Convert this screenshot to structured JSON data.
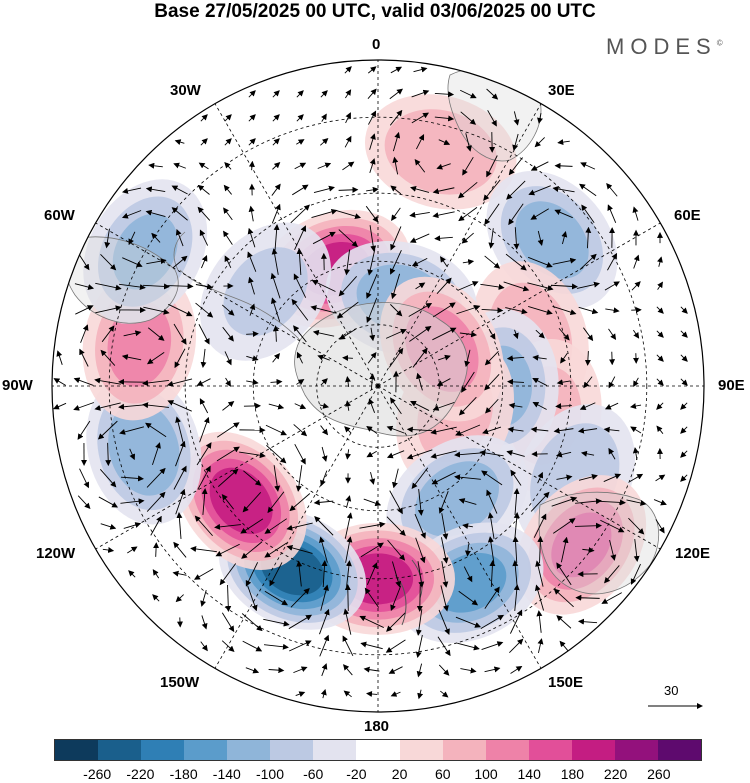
{
  "title": "Base 27/05/2025 00 UTC, valid 03/06/2025 00 UTC",
  "brand": "MODES",
  "brand_mark": "©",
  "longitude_labels": [
    {
      "text": "0",
      "lon": 0
    },
    {
      "text": "30E",
      "lon": 30
    },
    {
      "text": "60E",
      "lon": 60
    },
    {
      "text": "90E",
      "lon": 90
    },
    {
      "text": "120E",
      "lon": 120
    },
    {
      "text": "150E",
      "lon": 150
    },
    {
      "text": "180",
      "lon": 180
    },
    {
      "text": "150W",
      "lon": -150
    },
    {
      "text": "120W",
      "lon": -120
    },
    {
      "text": "90W",
      "lon": -90
    },
    {
      "text": "60W",
      "lon": -60
    },
    {
      "text": "30W",
      "lon": -30
    }
  ],
  "reference_vector": "30",
  "colorbar": {
    "colors": [
      "#0d3a5c",
      "#1a5f8c",
      "#2f7fb5",
      "#5b9ccb",
      "#8fb5d9",
      "#bcc9e3",
      "#e3e3ef",
      "#ffffff",
      "#f8d8d8",
      "#f4b3bd",
      "#ee82a8",
      "#e24f99",
      "#c41d82",
      "#93117c",
      "#5e0a6e"
    ],
    "tick_labels": [
      "-260",
      "-220",
      "-180",
      "-140",
      "-100",
      "-60",
      "-20",
      "20",
      "60",
      "100",
      "140",
      "180",
      "220",
      "260"
    ]
  },
  "anomaly_centers": [
    {
      "lon": 15,
      "lat": -35,
      "value": 90
    },
    {
      "lon": 50,
      "lat": -38,
      "value": -110
    },
    {
      "lon": 72,
      "lat": -52,
      "value": 80
    },
    {
      "lon": 100,
      "lat": -50,
      "value": 60
    },
    {
      "lon": 90,
      "lat": -60,
      "value": -100
    },
    {
      "lon": 110,
      "lat": -70,
      "value": 60
    },
    {
      "lon": 115,
      "lat": -40,
      "value": -90
    },
    {
      "lon": 128,
      "lat": -32,
      "value": 140
    },
    {
      "lon": 145,
      "lat": -57,
      "value": -120
    },
    {
      "lon": 155,
      "lat": -40,
      "value": -150
    },
    {
      "lon": 180,
      "lat": -45,
      "value": 190
    },
    {
      "lon": -155,
      "lat": -43,
      "value": -230
    },
    {
      "lon": -130,
      "lat": -48,
      "value": 200
    },
    {
      "lon": -105,
      "lat": -35,
      "value": -130
    },
    {
      "lon": -80,
      "lat": -35,
      "value": 110
    },
    {
      "lon": -60,
      "lat": -30,
      "value": -100
    },
    {
      "lon": -20,
      "lat": -60,
      "value": 190
    },
    {
      "lon": 15,
      "lat": -68,
      "value": -120
    },
    {
      "lon": -50,
      "lat": -55,
      "value": -60
    },
    {
      "lon": 60,
      "lat": -72,
      "value": 120
    }
  ]
}
